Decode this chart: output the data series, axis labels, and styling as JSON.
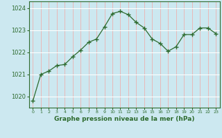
{
  "x": [
    0,
    1,
    2,
    3,
    4,
    5,
    6,
    7,
    8,
    9,
    10,
    11,
    12,
    13,
    14,
    15,
    16,
    17,
    18,
    19,
    20,
    21,
    22,
    23
  ],
  "y": [
    1019.8,
    1021.0,
    1021.15,
    1021.4,
    1021.45,
    1021.8,
    1022.1,
    1022.45,
    1022.6,
    1023.15,
    1023.75,
    1023.85,
    1023.7,
    1023.35,
    1023.1,
    1022.6,
    1022.4,
    1022.05,
    1022.25,
    1022.8,
    1022.8,
    1023.1,
    1023.1,
    1022.85
  ],
  "line_color": "#2d6a2d",
  "marker": "+",
  "marker_size": 4,
  "bg_color": "#cce8f0",
  "xlabel": "Graphe pression niveau de la mer (hPa)",
  "xlabel_color": "#2d6a2d",
  "tick_color": "#2d6a2d",
  "ylim": [
    1019.5,
    1024.3
  ],
  "yticks": [
    1020,
    1021,
    1022,
    1023,
    1024
  ],
  "xlim": [
    -0.5,
    23.5
  ],
  "axis_color": "#2d6a2d",
  "vgrid_color": "#e8b8b8",
  "hgrid_color": "#ffffff"
}
